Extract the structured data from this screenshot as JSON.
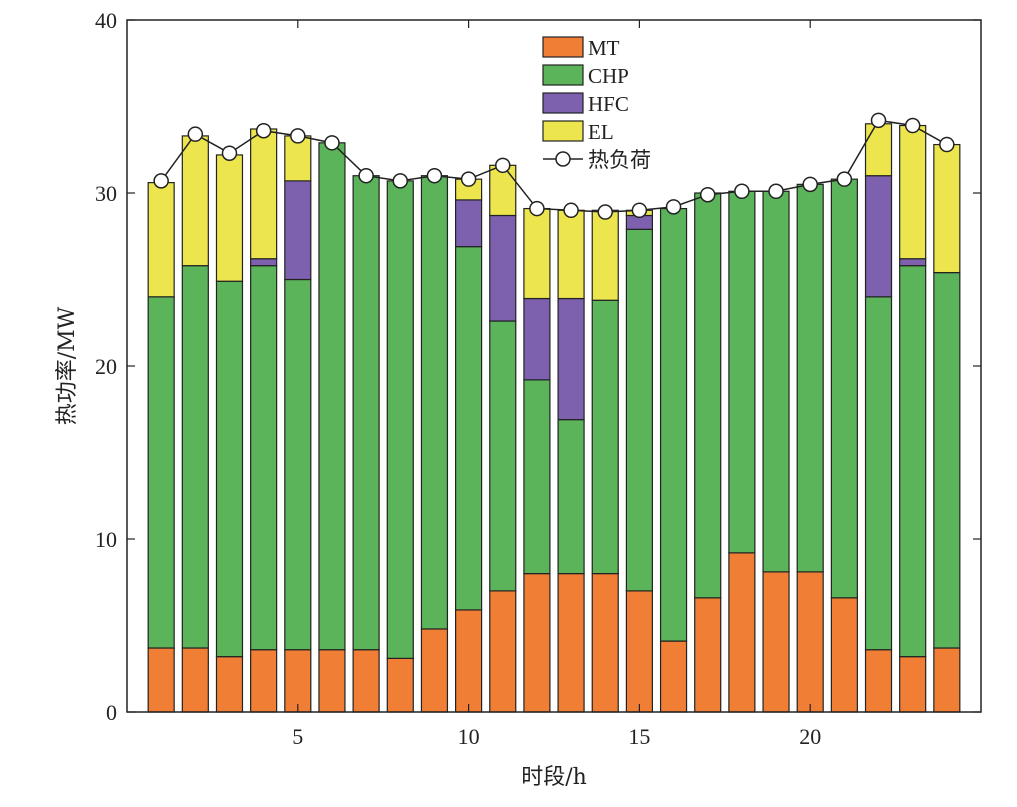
{
  "chart_data": {
    "type": "bar",
    "stacked": true,
    "xlabel": "时段/h",
    "ylabel": "热功率/MW",
    "ylim": [
      0,
      40
    ],
    "xlim": [
      0,
      25
    ],
    "xticks": [
      5,
      10,
      15,
      20
    ],
    "yticks": [
      0,
      10,
      20,
      30,
      40
    ],
    "grid": false,
    "legend_position": "top-center",
    "categories": [
      1,
      2,
      3,
      4,
      5,
      6,
      7,
      8,
      9,
      10,
      11,
      12,
      13,
      14,
      15,
      16,
      17,
      18,
      19,
      20,
      21,
      22,
      23,
      24
    ],
    "series": [
      {
        "name": "MT",
        "color": "#F07F35",
        "values": [
          3.7,
          3.7,
          3.2,
          3.6,
          3.6,
          3.6,
          3.6,
          3.1,
          4.8,
          5.9,
          7.0,
          8.0,
          8.0,
          8.0,
          7.0,
          4.1,
          6.6,
          9.2,
          8.1,
          8.1,
          6.6,
          3.6,
          3.2,
          3.7
        ]
      },
      {
        "name": "CHP",
        "color": "#5BB35A",
        "values": [
          20.3,
          22.1,
          21.7,
          22.2,
          21.4,
          29.3,
          27.4,
          27.6,
          26.2,
          21.0,
          15.6,
          11.2,
          8.9,
          15.8,
          20.9,
          25.0,
          23.4,
          20.9,
          22.0,
          22.4,
          24.2,
          20.4,
          22.6,
          21.7
        ]
      },
      {
        "name": "HFC",
        "color": "#7D61AF",
        "values": [
          0,
          0,
          0,
          0.4,
          5.7,
          0,
          0,
          0,
          0,
          2.7,
          6.1,
          4.7,
          7.0,
          0,
          0.8,
          0,
          0,
          0,
          0,
          0,
          0,
          7.0,
          0.4,
          0
        ]
      },
      {
        "name": "EL",
        "color": "#EDE54D",
        "values": [
          6.6,
          7.5,
          7.3,
          7.5,
          2.6,
          0,
          0,
          0,
          0,
          1.2,
          2.9,
          5.2,
          5.1,
          5.2,
          0.3,
          0,
          0,
          0,
          0,
          0,
          0,
          3.0,
          7.7,
          7.4
        ]
      },
      {
        "name": "热负荷",
        "type": "line",
        "color": "#222222",
        "marker": "circle",
        "values": [
          30.7,
          33.4,
          32.3,
          33.6,
          33.3,
          32.9,
          31.0,
          30.7,
          31.0,
          30.8,
          31.6,
          29.1,
          29.0,
          28.9,
          29.0,
          29.2,
          29.9,
          30.1,
          30.1,
          30.5,
          30.8,
          34.2,
          33.9,
          32.8
        ]
      }
    ]
  }
}
